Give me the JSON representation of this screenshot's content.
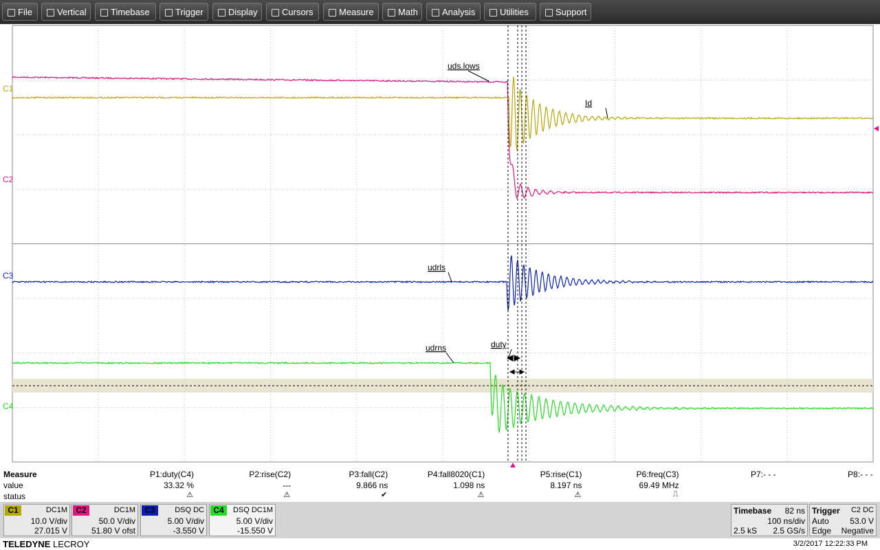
{
  "menu": [
    "File",
    "Vertical",
    "Timebase",
    "Trigger",
    "Display",
    "Cursors",
    "Measure",
    "Math",
    "Analysis",
    "Utilities",
    "Support"
  ],
  "traces": {
    "uds_lows": "uds.lows",
    "id": "Id",
    "udrls": "udrls",
    "udrns": "udrns",
    "duty": "duty"
  },
  "channel_markers": [
    "C1",
    "C2",
    "C3",
    "C4"
  ],
  "measure": {
    "title": "Measure",
    "row_labels": [
      "value",
      "status"
    ],
    "params": [
      {
        "name": "P1:duty(C4)",
        "value": "33.32 %",
        "status": "⚠"
      },
      {
        "name": "P2:rise(C2)",
        "value": "---",
        "status": "⚠"
      },
      {
        "name": "P3:fall(C2)",
        "value": "9.866 ns",
        "status": "✔"
      },
      {
        "name": "P4:fall8020(C1)",
        "value": "1.098 ns",
        "status": "⚠"
      },
      {
        "name": "P5:rise(C1)",
        "value": "8.197 ns",
        "status": "⚠"
      },
      {
        "name": "P6:freq(C3)",
        "value": "69.49 MHz",
        "status": "⎍"
      },
      {
        "name": "P7:- - -"
      },
      {
        "name": "P8:- - -"
      }
    ]
  },
  "channels": [
    {
      "label": "C1",
      "coupling": "DC1M",
      "scale": "10.0 V/div",
      "offset": "27.015 V",
      "color": "#b5a800"
    },
    {
      "label": "C2",
      "coupling": "DC1M",
      "scale": "50.0 V/div",
      "offset": "51.80 V ofst",
      "color": "#e0157f"
    },
    {
      "label": "C3",
      "coupling": "DSQ  DC",
      "scale": "5.00 V/div",
      "offset": "-3.550 V",
      "color": "#0a1fb0"
    },
    {
      "label": "C4",
      "coupling": "DSQ  DC1M",
      "scale": "5.00 V/div",
      "offset": "-15.550 V",
      "color": "#22dd22"
    }
  ],
  "timebase": {
    "title": "Timebase",
    "delay": "82 ns",
    "scale": "100 ns/div",
    "samples": "2.5 kS",
    "rate": "2.5 GS/s"
  },
  "trigger": {
    "title": "Trigger",
    "source": "C2  DC",
    "mode": "Auto",
    "level": "53.0 V",
    "type": "Edge",
    "slope": "Negative"
  },
  "footer": {
    "brand_bold": "TELEDYNE",
    "brand": "LECROY",
    "datetime": "3/2/2017 12:22:33 PM"
  }
}
